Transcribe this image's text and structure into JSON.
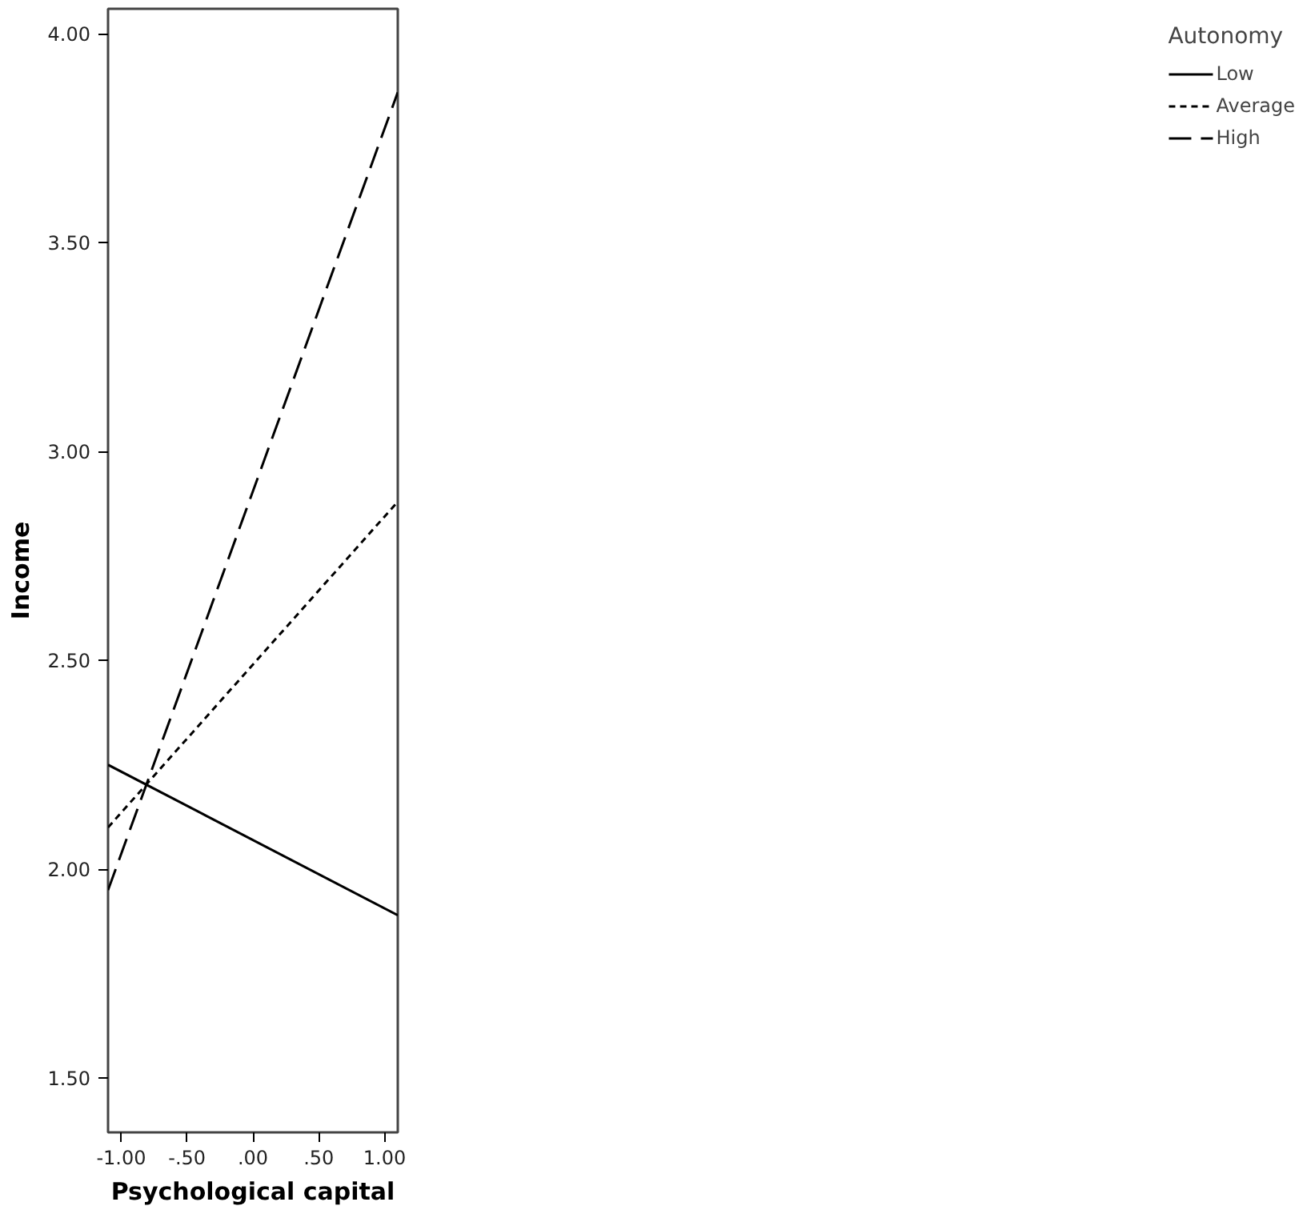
{
  "chart_data": {
    "type": "line",
    "xlabel": "Psychological capital",
    "ylabel": "Income",
    "legend_title": "Autonomy",
    "x": [
      -1.1,
      1.1
    ],
    "series": [
      {
        "name": "Low",
        "color": "#000000",
        "line_style": "solid",
        "values": [
          2.25,
          1.89
        ]
      },
      {
        "name": "Average",
        "color": "#000000",
        "line_style": "dotted",
        "values": [
          2.1,
          2.88
        ]
      },
      {
        "name": "High",
        "color": "#000000",
        "line_style": "dashed",
        "values": [
          1.95,
          3.86
        ]
      }
    ],
    "xlim": [
      -1.1,
      1.1
    ],
    "ylim": [
      1.37,
      4.06
    ],
    "xticks": [
      {
        "value": -1.0,
        "label": "-1.00"
      },
      {
        "value": -0.5,
        "label": "-.50"
      },
      {
        "value": 0,
        "label": ".00"
      },
      {
        "value": 0.5,
        "label": ".50"
      },
      {
        "value": 1.0,
        "label": "1.00"
      }
    ],
    "yticks": [
      {
        "value": 1.5,
        "label": "1.50"
      },
      {
        "value": 2.0,
        "label": "2.00"
      },
      {
        "value": 2.5,
        "label": "2.50"
      },
      {
        "value": 3.0,
        "label": "3.00"
      },
      {
        "value": 3.5,
        "label": "3.50"
      },
      {
        "value": 4.0,
        "label": "4.00"
      }
    ],
    "grid": false,
    "legend": "top right",
    "marker": "none"
  }
}
